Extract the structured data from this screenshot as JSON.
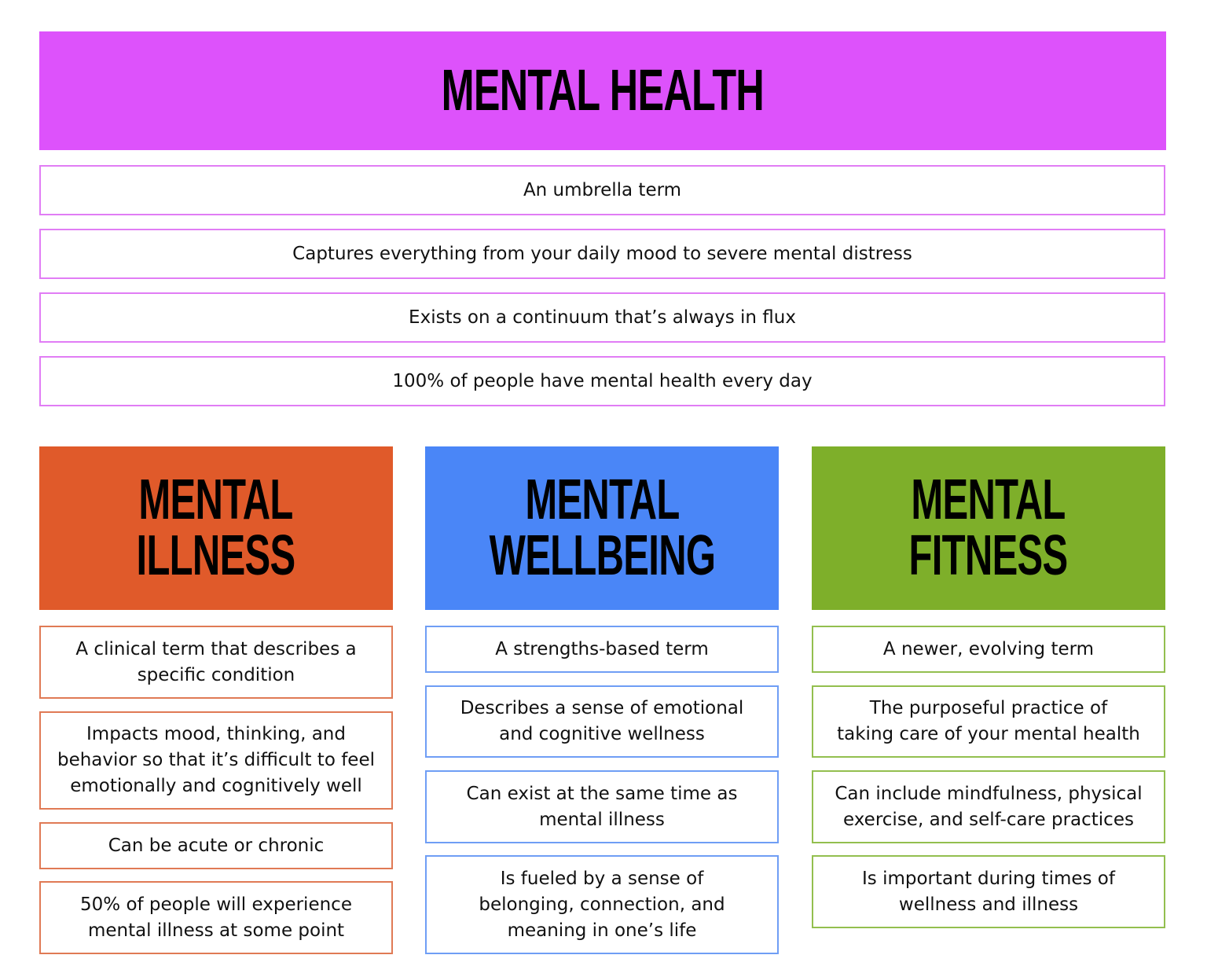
{
  "colors": {
    "mental_health": "#dd52fb",
    "mental_illness": "#e05a2a",
    "mental_wellbeing": "#4a86f7",
    "mental_fitness": "#7eaf2a"
  },
  "mental_health": {
    "title": "MENTAL HEALTH",
    "items": [
      "An umbrella term",
      "Captures everything from your daily mood to severe mental distress",
      "Exists on a continuum that’s always in flux",
      "100% of people have mental health every day"
    ]
  },
  "columns": [
    {
      "title": "MENTAL\nILLNESS",
      "items": [
        "A clinical term that describes a\nspecific condition",
        "Impacts mood, thinking, and\nbehavior so that it’s difficult to feel\nemotionally and cognitively well",
        "Can be acute or chronic",
        "50% of people will experience\nmental illness at some point"
      ]
    },
    {
      "title": "MENTAL\nWELLBEING",
      "items": [
        "A strengths-based term",
        "Describes a sense of emotional\nand cognitive wellness",
        "Can exist at the same time as\nmental illness",
        "Is fueled by a sense of\nbelonging, connection, and\nmeaning in one’s life"
      ]
    },
    {
      "title": "MENTAL\nFITNESS",
      "items": [
        "A newer, evolving term",
        "The purposeful practice of\ntaking care of your mental health",
        "Can include mindfulness, physical\nexercise, and self-care practices",
        "Is important during times of\nwellness and illness"
      ]
    }
  ]
}
